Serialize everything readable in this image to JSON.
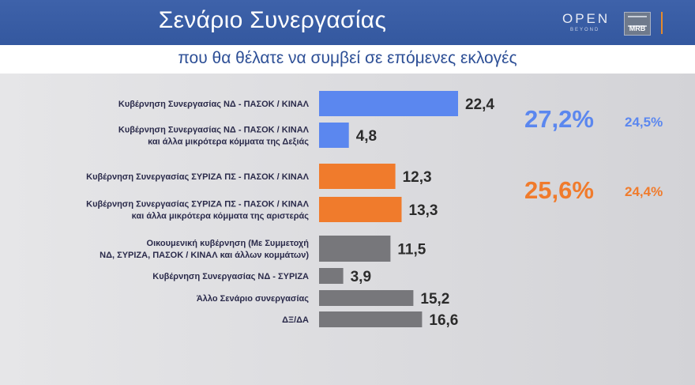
{
  "header": {
    "title": "Σενάριο Συνεργασίας",
    "logo_open": "OPEN",
    "logo_open_sub": "BEYOND",
    "logo_mrb": "MRB"
  },
  "subheader": {
    "title": "που θα θέλατε να συμβεί σε επόμενες εκλογές"
  },
  "colors": {
    "blue": "#5b87ef",
    "orange": "#f07b2c",
    "gray": "#77777b"
  },
  "chart_data": {
    "type": "bar",
    "orientation": "horizontal",
    "title": "",
    "xlabel": "",
    "ylabel": "",
    "xlim": [
      0,
      22.4
    ],
    "categories": [
      [
        "Κυβέρνηση Συνεργασίας ΝΔ - ΠΑΣΟΚ / ΚΙΝΑΛ"
      ],
      [
        "Κυβέρνηση Συνεργασίας ΝΔ - ΠΑΣΟΚ / ΚΙΝΑΛ",
        "και άλλα μικρότερα κόμματα της Δεξιάς"
      ],
      [
        "Κυβέρνηση Συνεργασίας ΣΥΡΙΖΑ ΠΣ - ΠΑΣΟΚ / ΚΙΝΑΛ"
      ],
      [
        "Κυβέρνηση Συνεργασίας ΣΥΡΙΖΑ ΠΣ - ΠΑΣΟΚ / ΚΙΝΑΛ",
        "και άλλα μικρότερα κόμματα της αριστεράς"
      ],
      [
        "Οικουμενική κυβέρνηση (Με Συμμετοχή",
        "ΝΔ, ΣΥΡΙΖΑ, ΠΑΣΟΚ / ΚΙΝΑΛ και άλλων κομμάτων)"
      ],
      [
        "Κυβέρνηση Συνεργασίας ΝΔ - ΣΥΡΙΖΑ"
      ],
      [
        "Άλλο Σενάριο συνεργασίας"
      ],
      [
        "ΔΞ/ΔΑ"
      ]
    ],
    "values": [
      22.4,
      4.8,
      12.3,
      13.3,
      11.5,
      3.9,
      15.2,
      16.6
    ],
    "value_labels": [
      "22,4",
      "4,8",
      "12,3",
      "13,3",
      "11,5",
      "3,9",
      "15,2",
      "16,6"
    ],
    "bar_colors": [
      "#5b87ef",
      "#5b87ef",
      "#f07b2c",
      "#f07b2c",
      "#77777b",
      "#77777b",
      "#77777b",
      "#77777b"
    ],
    "grid": false,
    "legend": "none",
    "annotations": [
      {
        "group": "blue",
        "total": "27,2%",
        "compare": "24,5%",
        "color": "#5b87ef"
      },
      {
        "group": "orange",
        "total": "25,6%",
        "compare": "24,4%",
        "color": "#f07b2c"
      }
    ]
  }
}
